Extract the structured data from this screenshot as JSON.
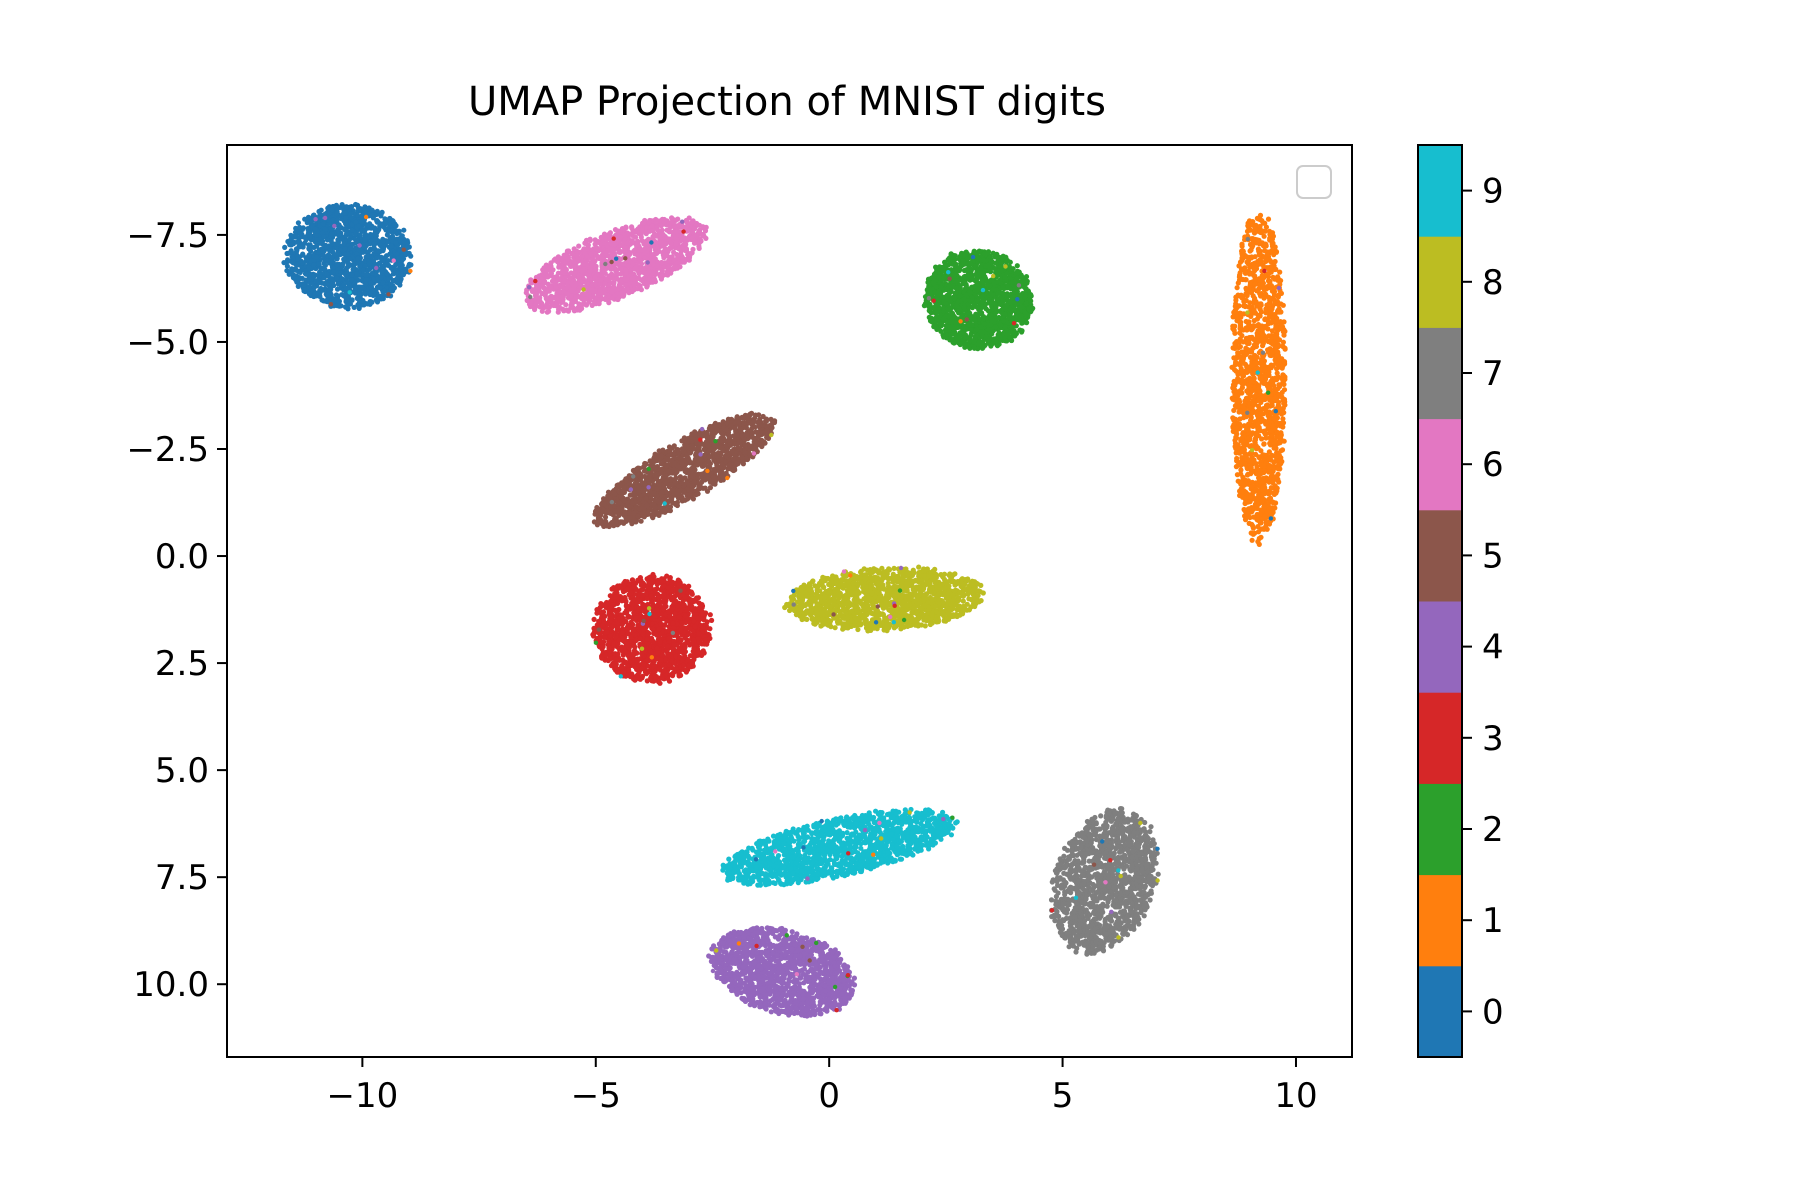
{
  "chart_data": {
    "type": "scatter",
    "title": "UMAP Projection of MNIST digits",
    "xlabel": "",
    "ylabel": "",
    "xlim": [
      -12.9,
      11.2
    ],
    "ylim": [
      11.7,
      -9.6
    ],
    "y_inverted": true,
    "grid": false,
    "legend": {
      "placement": "top-right",
      "entries": []
    },
    "x_ticks": [
      {
        "value": -10,
        "label": "−10"
      },
      {
        "value": -5,
        "label": "−5"
      },
      {
        "value": 0,
        "label": "0"
      },
      {
        "value": 5,
        "label": "5"
      },
      {
        "value": 10,
        "label": "10"
      }
    ],
    "y_ticks": [
      {
        "value": -7.5,
        "label": "−7.5"
      },
      {
        "value": -5.0,
        "label": "−5.0"
      },
      {
        "value": -2.5,
        "label": "−2.5"
      },
      {
        "value": 0.0,
        "label": "0.0"
      },
      {
        "value": 2.5,
        "label": "2.5"
      },
      {
        "value": 5.0,
        "label": "5.0"
      },
      {
        "value": 7.5,
        "label": "7.5"
      },
      {
        "value": 10.0,
        "label": "10.0"
      }
    ],
    "colorbar": {
      "range": [
        -0.5,
        9.5
      ],
      "ticks": [
        0,
        1,
        2,
        3,
        4,
        5,
        6,
        7,
        8,
        9
      ],
      "tick_labels": [
        "0",
        "1",
        "2",
        "3",
        "4",
        "5",
        "6",
        "7",
        "8",
        "9"
      ],
      "colors": [
        "#1f77b4",
        "#ff7f0e",
        "#2ca02c",
        "#d62728",
        "#9467bd",
        "#8c564b",
        "#e377c2",
        "#7f7f7f",
        "#bcbd22",
        "#17becf"
      ]
    },
    "clusters": [
      {
        "digit": 0,
        "color": "#1f77b4",
        "center": [
          -10.3,
          -7.0
        ],
        "width": 2.8,
        "height": 2.5,
        "angle": 0
      },
      {
        "digit": 1,
        "color": "#ff7f0e",
        "center": [
          9.2,
          -4.2
        ],
        "width": 1.2,
        "height": 8.0,
        "angle": 0
      },
      {
        "digit": 2,
        "color": "#2ca02c",
        "center": [
          3.2,
          -6.0
        ],
        "width": 2.4,
        "height": 2.4,
        "angle": 10
      },
      {
        "digit": 3,
        "color": "#d62728",
        "center": [
          -3.8,
          1.7
        ],
        "width": 2.6,
        "height": 2.6,
        "angle": 0
      },
      {
        "digit": 4,
        "color": "#9467bd",
        "center": [
          -1.0,
          9.7
        ],
        "width": 3.3,
        "height": 2.0,
        "angle": 15
      },
      {
        "digit": 5,
        "color": "#8c564b",
        "center": [
          -3.1,
          -2.0
        ],
        "width": 4.5,
        "height": 1.4,
        "angle": -30
      },
      {
        "digit": 6,
        "color": "#e377c2",
        "center": [
          -4.6,
          -6.8
        ],
        "width": 4.3,
        "height": 1.6,
        "angle": -22
      },
      {
        "digit": 7,
        "color": "#7f7f7f",
        "center": [
          5.9,
          7.6
        ],
        "width": 2.2,
        "height": 3.6,
        "angle": 20
      },
      {
        "digit": 8,
        "color": "#bcbd22",
        "center": [
          1.2,
          1.0
        ],
        "width": 4.4,
        "height": 1.5,
        "angle": -3
      },
      {
        "digit": 9,
        "color": "#17becf",
        "center": [
          0.2,
          6.8
        ],
        "width": 5.3,
        "height": 1.4,
        "angle": -12
      }
    ]
  }
}
